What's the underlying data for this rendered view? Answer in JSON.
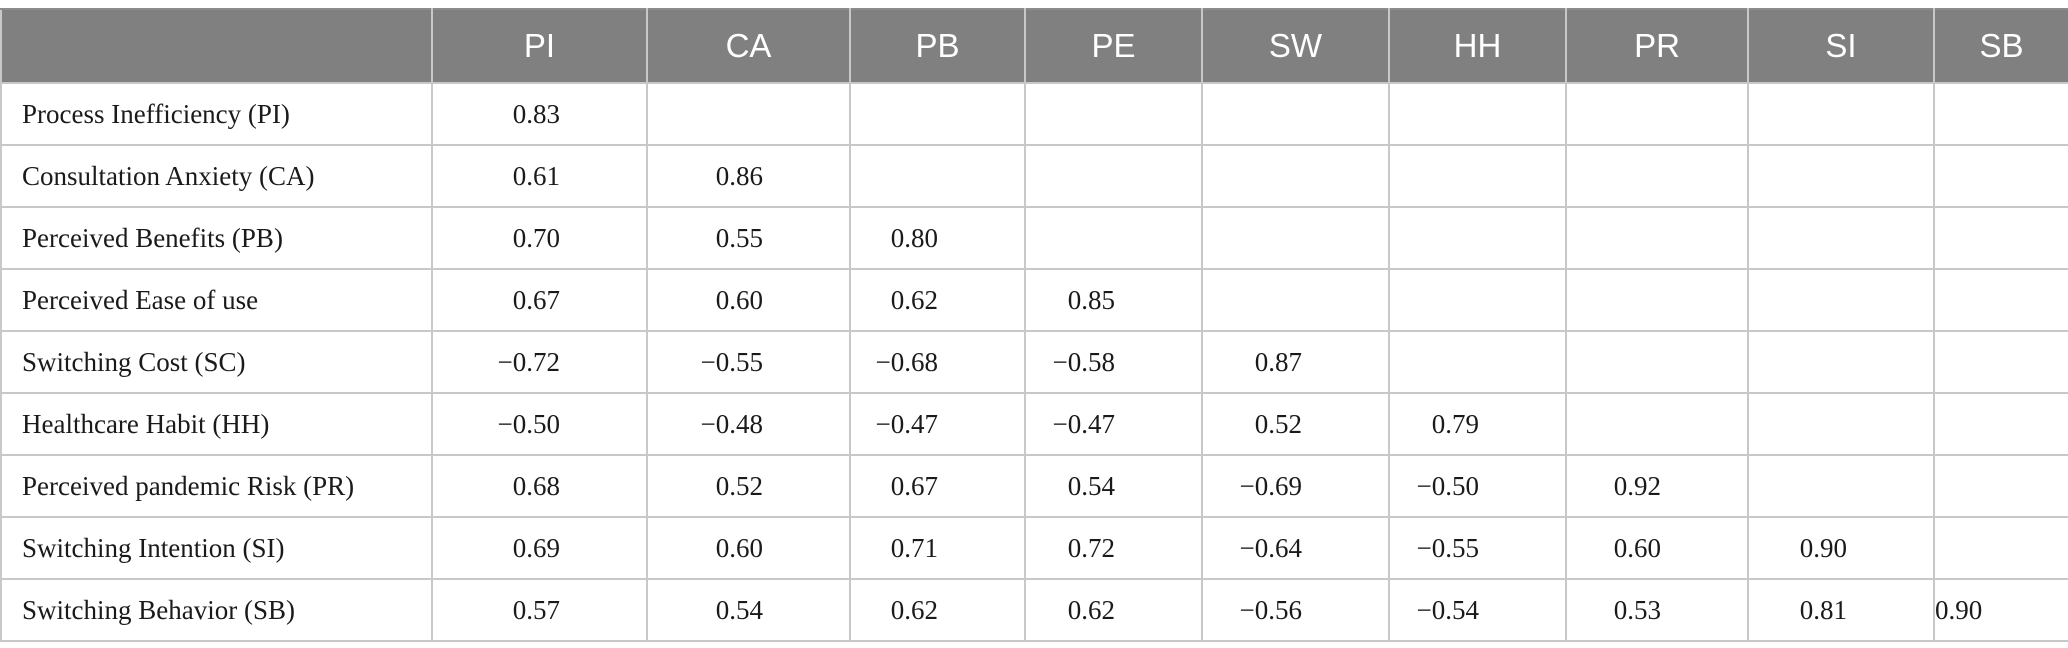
{
  "table": {
    "columns": [
      "PI",
      "CA",
      "PB",
      "PE",
      "SW",
      "HH",
      "PR",
      "SI",
      "SB"
    ],
    "rows": [
      {
        "label": "Process Inefficiency (PI)",
        "values": [
          "0.83",
          "",
          "",
          "",
          "",
          "",
          "",
          "",
          ""
        ]
      },
      {
        "label": "Consultation Anxiety (CA)",
        "values": [
          "0.61",
          "0.86",
          "",
          "",
          "",
          "",
          "",
          "",
          ""
        ]
      },
      {
        "label": "Perceived Benefits (PB)",
        "values": [
          "0.70",
          "0.55",
          "0.80",
          "",
          "",
          "",
          "",
          "",
          ""
        ]
      },
      {
        "label": "Perceived Ease of use",
        "values": [
          "0.67",
          "0.60",
          "0.62",
          "0.85",
          "",
          "",
          "",
          "",
          ""
        ]
      },
      {
        "label": "Switching Cost (SC)",
        "values": [
          "−0.72",
          "−0.55",
          "−0.68",
          "−0.58",
          "0.87",
          "",
          "",
          "",
          ""
        ]
      },
      {
        "label": "Healthcare Habit (HH)",
        "values": [
          "−0.50",
          "−0.48",
          "−0.47",
          "−0.47",
          "0.52",
          "0.79",
          "",
          "",
          ""
        ]
      },
      {
        "label": "Perceived pandemic Risk (PR)",
        "values": [
          "0.68",
          "0.52",
          "0.67",
          "0.54",
          "−0.69",
          "−0.50",
          "0.92",
          "",
          ""
        ]
      },
      {
        "label": "Switching Intention (SI)",
        "values": [
          "0.69",
          "0.60",
          "0.71",
          "0.72",
          "−0.64",
          "−0.55",
          "0.60",
          "0.90",
          ""
        ]
      },
      {
        "label": "Switching Behavior (SB)",
        "values": [
          "0.57",
          "0.54",
          "0.62",
          "0.62",
          "−0.56",
          "−0.54",
          "0.53",
          "0.81",
          "0.90"
        ]
      }
    ]
  }
}
